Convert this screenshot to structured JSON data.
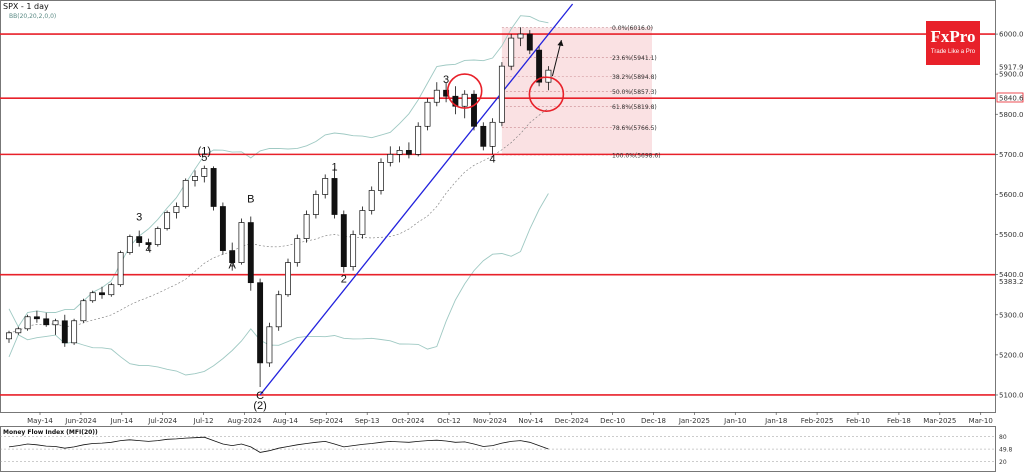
{
  "chart_data": {
    "type": "candlestick",
    "title": "SPX - 1 day",
    "indicator_label": "BB(20,20,2,0,0)",
    "y_ticks": [
      5100,
      5200,
      5300,
      5400,
      5500,
      5600,
      5700,
      5800,
      5900,
      6000
    ],
    "ylim": [
      5060,
      6080
    ],
    "x_ticks": [
      "May-14",
      "Jun-2024",
      "Jun-14",
      "Jul-2024",
      "Jul-12",
      "Aug-2024",
      "Aug-14",
      "Sep-2024",
      "Sep-13",
      "Oct-2024",
      "Oct-12",
      "Nov-2024",
      "Nov-14",
      "Dec-2024",
      "Dec-10",
      "Dec-18",
      "Jan-2025",
      "Jan-10",
      "Jan-18",
      "Feb-2025",
      "Feb-10",
      "Feb-18",
      "Mar-2025",
      "Mar-10"
    ],
    "horizontal_levels": [
      6000,
      5840,
      5700,
      5400,
      5100
    ],
    "price_labels": [
      {
        "value": 5917.9,
        "text": "5917.9",
        "style": "plain"
      },
      {
        "value": 5840.6,
        "text": "5840.6",
        "style": "boxed"
      },
      {
        "value": 5383.2,
        "text": "5383.2",
        "style": "plain"
      }
    ],
    "fibonacci": {
      "levels": [
        {
          "value": 6016.0,
          "label": "0.0%(6016.0)"
        },
        {
          "value": 5941.1,
          "label": "23.6%(5941.1)"
        },
        {
          "value": 5894.8,
          "label": "38.2%(5894.8)"
        },
        {
          "value": 5857.3,
          "label": "50.0%(5857.3)"
        },
        {
          "value": 5819.8,
          "label": "61.8%(5819.8)"
        },
        {
          "value": 5766.5,
          "label": "78.6%(5766.5)"
        },
        {
          "value": 5698.6,
          "label": "100.0%(5698.6)"
        }
      ]
    },
    "wave_labels": [
      {
        "text": "(1)",
        "date_index": 21,
        "price": 5700
      },
      {
        "text": "5",
        "date_index": 21,
        "price": 5683
      },
      {
        "text": "3",
        "date_index": 14,
        "price": 5535
      },
      {
        "text": "4",
        "date_index": 15,
        "price": 5455
      },
      {
        "text": "A",
        "date_index": 24,
        "price": 5415
      },
      {
        "text": "B",
        "date_index": 26,
        "price": 5580
      },
      {
        "text": "C",
        "date_index": 27,
        "price": 5090
      },
      {
        "text": "(2)",
        "date_index": 27,
        "price": 5065
      },
      {
        "text": "1",
        "date_index": 35,
        "price": 5660
      },
      {
        "text": "2",
        "date_index": 36,
        "price": 5380
      },
      {
        "text": "3",
        "date_index": 47,
        "price": 5878
      },
      {
        "text": "4",
        "date_index": 52,
        "price": 5680
      }
    ],
    "candles": [
      [
        5240,
        5260,
        5230,
        5255
      ],
      [
        5255,
        5270,
        5250,
        5265
      ],
      [
        5265,
        5300,
        5260,
        5295
      ],
      [
        5295,
        5310,
        5280,
        5290
      ],
      [
        5290,
        5305,
        5270,
        5275
      ],
      [
        5275,
        5290,
        5250,
        5285
      ],
      [
        5285,
        5300,
        5220,
        5230
      ],
      [
        5230,
        5290,
        5225,
        5285
      ],
      [
        5285,
        5340,
        5280,
        5335
      ],
      [
        5335,
        5360,
        5330,
        5355
      ],
      [
        5355,
        5370,
        5340,
        5350
      ],
      [
        5350,
        5380,
        5345,
        5375
      ],
      [
        5375,
        5460,
        5370,
        5455
      ],
      [
        5455,
        5500,
        5450,
        5495
      ],
      [
        5495,
        5510,
        5470,
        5480
      ],
      [
        5480,
        5490,
        5460,
        5475
      ],
      [
        5475,
        5520,
        5470,
        5515
      ],
      [
        5515,
        5560,
        5510,
        5555
      ],
      [
        5555,
        5580,
        5540,
        5570
      ],
      [
        5570,
        5640,
        5565,
        5635
      ],
      [
        5635,
        5660,
        5620,
        5645
      ],
      [
        5645,
        5672,
        5630,
        5665
      ],
      [
        5665,
        5670,
        5560,
        5570
      ],
      [
        5570,
        5580,
        5450,
        5460
      ],
      [
        5460,
        5480,
        5410,
        5430
      ],
      [
        5430,
        5540,
        5425,
        5530
      ],
      [
        5530,
        5545,
        5360,
        5380
      ],
      [
        5380,
        5390,
        5120,
        5180
      ],
      [
        5180,
        5280,
        5170,
        5270
      ],
      [
        5270,
        5360,
        5260,
        5350
      ],
      [
        5350,
        5440,
        5345,
        5430
      ],
      [
        5430,
        5500,
        5420,
        5490
      ],
      [
        5490,
        5560,
        5480,
        5550
      ],
      [
        5550,
        5610,
        5540,
        5600
      ],
      [
        5600,
        5650,
        5590,
        5640
      ],
      [
        5640,
        5665,
        5540,
        5550
      ],
      [
        5550,
        5560,
        5405,
        5420
      ],
      [
        5420,
        5510,
        5410,
        5500
      ],
      [
        5500,
        5570,
        5490,
        5560
      ],
      [
        5560,
        5620,
        5550,
        5610
      ],
      [
        5610,
        5690,
        5600,
        5680
      ],
      [
        5680,
        5720,
        5670,
        5700
      ],
      [
        5700,
        5720,
        5680,
        5710
      ],
      [
        5710,
        5730,
        5690,
        5700
      ],
      [
        5700,
        5780,
        5695,
        5770
      ],
      [
        5770,
        5840,
        5760,
        5830
      ],
      [
        5830,
        5880,
        5820,
        5860
      ],
      [
        5860,
        5878,
        5830,
        5845
      ],
      [
        5845,
        5870,
        5800,
        5820
      ],
      [
        5820,
        5860,
        5790,
        5850
      ],
      [
        5850,
        5860,
        5760,
        5770
      ],
      [
        5770,
        5780,
        5710,
        5720
      ],
      [
        5720,
        5790,
        5700,
        5780
      ],
      [
        5780,
        5930,
        5770,
        5920
      ],
      [
        5920,
        6000,
        5910,
        5990
      ],
      [
        5990,
        6017,
        5970,
        6000
      ],
      [
        6000,
        6010,
        5950,
        5960
      ],
      [
        5960,
        5970,
        5870,
        5880
      ],
      [
        5880,
        5920,
        5860,
        5910
      ]
    ],
    "mfi": {
      "title": "Money Flow Index (MFI(20))",
      "y_ticks": [
        80,
        49.8,
        20
      ],
      "ylim": [
        0,
        100
      ],
      "values": [
        55,
        58,
        62,
        60,
        57,
        56,
        52,
        55,
        60,
        63,
        64,
        66,
        70,
        72,
        70,
        68,
        70,
        73,
        74,
        76,
        77,
        78,
        70,
        62,
        58,
        62,
        55,
        42,
        46,
        52,
        56,
        60,
        63,
        66,
        68,
        62,
        55,
        58,
        61,
        63,
        66,
        68,
        67,
        66,
        68,
        70,
        71,
        69,
        66,
        67,
        62,
        56,
        58,
        64,
        68,
        70,
        66,
        58,
        50
      ]
    }
  },
  "brand": {
    "name": "FxPro",
    "tagline": "Trade Like a Pro",
    "accent": "#e8212a"
  },
  "colors": {
    "level": "#e8212a",
    "trendline": "#2222dd",
    "bands": "#9fc9c3",
    "fib_zone": "#f5c9cc"
  }
}
